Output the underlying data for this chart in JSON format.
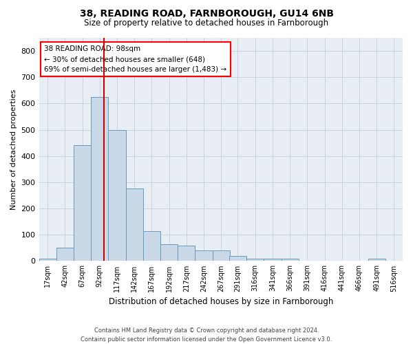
{
  "title1": "38, READING ROAD, FARNBOROUGH, GU14 6NB",
  "title2": "Size of property relative to detached houses in Farnborough",
  "xlabel": "Distribution of detached houses by size in Farnborough",
  "ylabel": "Number of detached properties",
  "footnote": "Contains HM Land Registry data © Crown copyright and database right 2024.\nContains public sector information licensed under the Open Government Licence v3.0.",
  "annotation_title": "38 READING ROAD: 98sqm",
  "annotation_line1": "← 30% of detached houses are smaller (648)",
  "annotation_line2": "69% of semi-detached houses are larger (1,483) →",
  "property_size": 98,
  "bin_centers": [
    17,
    42,
    67,
    92,
    117,
    142,
    167,
    192,
    217,
    242,
    267,
    291,
    316,
    341,
    366,
    391,
    416,
    441,
    466,
    491,
    516
  ],
  "bin_counts": [
    10,
    50,
    440,
    625,
    500,
    275,
    115,
    65,
    60,
    40,
    40,
    20,
    10,
    10,
    10,
    0,
    0,
    0,
    0,
    10,
    0
  ],
  "bin_width": 25,
  "bar_color": "#c9d9e8",
  "bar_edge_color": "#6699bb",
  "vline_color": "#cc0000",
  "vline_x": 98,
  "ylim": [
    0,
    850
  ],
  "yticks": [
    0,
    100,
    200,
    300,
    400,
    500,
    600,
    700,
    800
  ],
  "xlim": [
    4.5,
    528.5
  ],
  "xtick_labels": [
    "17sqm",
    "42sqm",
    "67sqm",
    "92sqm",
    "117sqm",
    "142sqm",
    "167sqm",
    "192sqm",
    "217sqm",
    "242sqm",
    "267sqm",
    "291sqm",
    "316sqm",
    "341sqm",
    "366sqm",
    "391sqm",
    "416sqm",
    "441sqm",
    "466sqm",
    "491sqm",
    "516sqm"
  ],
  "xtick_positions": [
    17,
    42,
    67,
    92,
    117,
    142,
    167,
    192,
    217,
    242,
    267,
    291,
    316,
    341,
    366,
    391,
    416,
    441,
    466,
    491,
    516
  ],
  "grid_color": "#c8d4e0",
  "background_color": "#e8eef4",
  "title1_fontsize": 10,
  "title2_fontsize": 8.5,
  "xlabel_fontsize": 8.5,
  "ylabel_fontsize": 8,
  "annotation_fontsize": 7.5,
  "footnote_fontsize": 6
}
